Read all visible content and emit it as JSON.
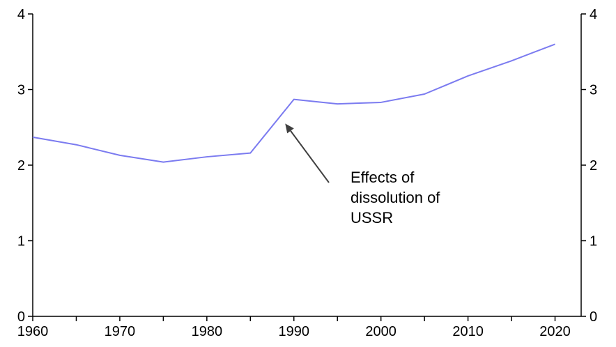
{
  "chart_data": {
    "type": "line",
    "title": "",
    "xlabel": "",
    "ylabel": "",
    "x": [
      1960,
      1965,
      1970,
      1975,
      1980,
      1985,
      1990,
      1995,
      2000,
      2005,
      2010,
      2015,
      2020
    ],
    "series": [
      {
        "values": [
          2.37,
          2.27,
          2.13,
          2.04,
          2.11,
          2.16,
          2.87,
          2.81,
          2.83,
          2.94,
          3.18,
          3.38,
          3.6
        ],
        "color": "#7b7bf0"
      }
    ],
    "xlim": [
      1960,
      2023
    ],
    "ylim": [
      0,
      4
    ],
    "x_ticks": [
      "1960",
      "1970",
      "1980",
      "1990",
      "2000",
      "2010",
      "2020"
    ],
    "y_ticks_left": [
      "0",
      "1",
      "2",
      "3",
      "4"
    ],
    "y_ticks_right": [
      "0",
      "1",
      "2",
      "3",
      "4"
    ],
    "grid": false,
    "annotation": {
      "lines": [
        "Effects of",
        "dissolution of",
        "USSR"
      ],
      "points_to": {
        "x": 1989,
        "y": 2.55
      },
      "arrow_color": "#404040"
    }
  }
}
